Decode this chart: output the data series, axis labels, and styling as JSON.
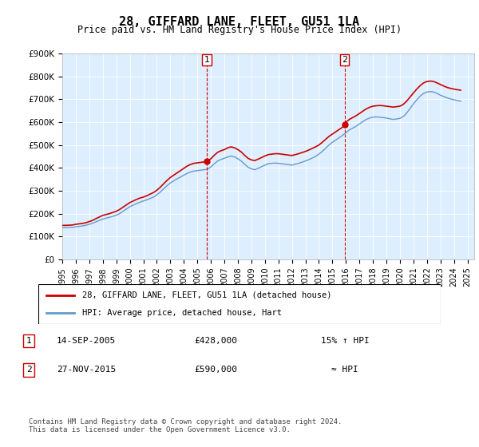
{
  "title": "28, GIFFARD LANE, FLEET, GU51 1LA",
  "subtitle": "Price paid vs. HM Land Registry's House Price Index (HPI)",
  "legend_line1": "28, GIFFARD LANE, FLEET, GU51 1LA (detached house)",
  "legend_line2": "HPI: Average price, detached house, Hart",
  "marker1_label": "1",
  "marker1_date": "14-SEP-2005",
  "marker1_price": "£428,000",
  "marker1_hpi": "15% ↑ HPI",
  "marker1_year": 2005.7,
  "marker1_value": 428000,
  "marker2_label": "2",
  "marker2_date": "27-NOV-2015",
  "marker2_price": "£590,000",
  "marker2_hpi": "≈ HPI",
  "marker2_year": 2015.9,
  "marker2_value": 590000,
  "line_color_red": "#cc0000",
  "line_color_blue": "#6699cc",
  "marker_box_color": "#cc0000",
  "vline_color": "#cc0000",
  "background_color": "#ddeeff",
  "plot_bg": "#ddeeff",
  "ylim": [
    0,
    900000
  ],
  "xlim_start": 1995,
  "xlim_end": 2025.5,
  "footer": "Contains HM Land Registry data © Crown copyright and database right 2024.\nThis data is licensed under the Open Government Licence v3.0.",
  "red_data_x": [
    1995.0,
    1995.25,
    1995.5,
    1995.75,
    1996.0,
    1996.25,
    1996.5,
    1996.75,
    1997.0,
    1997.25,
    1997.5,
    1997.75,
    1998.0,
    1998.25,
    1998.5,
    1998.75,
    1999.0,
    1999.25,
    1999.5,
    1999.75,
    2000.0,
    2000.25,
    2000.5,
    2000.75,
    2001.0,
    2001.25,
    2001.5,
    2001.75,
    2002.0,
    2002.25,
    2002.5,
    2002.75,
    2003.0,
    2003.25,
    2003.5,
    2003.75,
    2004.0,
    2004.25,
    2004.5,
    2004.75,
    2005.0,
    2005.25,
    2005.5,
    2005.7,
    2005.75,
    2006.0,
    2006.25,
    2006.5,
    2006.75,
    2007.0,
    2007.25,
    2007.5,
    2007.75,
    2008.0,
    2008.25,
    2008.5,
    2008.75,
    2009.0,
    2009.25,
    2009.5,
    2009.75,
    2010.0,
    2010.25,
    2010.5,
    2010.75,
    2011.0,
    2011.25,
    2011.5,
    2011.75,
    2012.0,
    2012.25,
    2012.5,
    2012.75,
    2013.0,
    2013.25,
    2013.5,
    2013.75,
    2014.0,
    2014.25,
    2014.5,
    2014.75,
    2015.0,
    2015.25,
    2015.5,
    2015.75,
    2015.9,
    2016.0,
    2016.25,
    2016.5,
    2016.75,
    2017.0,
    2017.25,
    2017.5,
    2017.75,
    2018.0,
    2018.25,
    2018.5,
    2018.75,
    2019.0,
    2019.25,
    2019.5,
    2019.75,
    2020.0,
    2020.25,
    2020.5,
    2020.75,
    2021.0,
    2021.25,
    2021.5,
    2021.75,
    2022.0,
    2022.25,
    2022.5,
    2022.75,
    2023.0,
    2023.25,
    2023.5,
    2023.75,
    2024.0,
    2024.25,
    2024.5
  ],
  "red_data_y": [
    148000,
    148500,
    149000,
    150000,
    153000,
    155000,
    157000,
    160000,
    165000,
    170000,
    178000,
    185000,
    192000,
    196000,
    200000,
    205000,
    210000,
    218000,
    228000,
    238000,
    248000,
    255000,
    262000,
    268000,
    272000,
    278000,
    285000,
    292000,
    302000,
    315000,
    330000,
    345000,
    358000,
    368000,
    378000,
    388000,
    398000,
    408000,
    415000,
    420000,
    422000,
    424000,
    426000,
    428000,
    429000,
    440000,
    455000,
    468000,
    475000,
    480000,
    488000,
    492000,
    488000,
    480000,
    470000,
    455000,
    442000,
    435000,
    432000,
    438000,
    445000,
    452000,
    458000,
    460000,
    462000,
    462000,
    460000,
    458000,
    456000,
    454000,
    458000,
    462000,
    467000,
    472000,
    478000,
    485000,
    492000,
    500000,
    512000,
    525000,
    538000,
    548000,
    558000,
    568000,
    578000,
    590000,
    600000,
    612000,
    620000,
    628000,
    638000,
    648000,
    658000,
    665000,
    670000,
    672000,
    673000,
    672000,
    670000,
    668000,
    666000,
    668000,
    670000,
    678000,
    692000,
    710000,
    728000,
    745000,
    760000,
    772000,
    778000,
    780000,
    778000,
    772000,
    765000,
    758000,
    752000,
    748000,
    745000,
    742000,
    740000
  ],
  "blue_data_x": [
    1995.0,
    1995.25,
    1995.5,
    1995.75,
    1996.0,
    1996.25,
    1996.5,
    1996.75,
    1997.0,
    1997.25,
    1997.5,
    1997.75,
    1998.0,
    1998.25,
    1998.5,
    1998.75,
    1999.0,
    1999.25,
    1999.5,
    1999.75,
    2000.0,
    2000.25,
    2000.5,
    2000.75,
    2001.0,
    2001.25,
    2001.5,
    2001.75,
    2002.0,
    2002.25,
    2002.5,
    2002.75,
    2003.0,
    2003.25,
    2003.5,
    2003.75,
    2004.0,
    2004.25,
    2004.5,
    2004.75,
    2005.0,
    2005.25,
    2005.5,
    2005.75,
    2006.0,
    2006.25,
    2006.5,
    2006.75,
    2007.0,
    2007.25,
    2007.5,
    2007.75,
    2008.0,
    2008.25,
    2008.5,
    2008.75,
    2009.0,
    2009.25,
    2009.5,
    2009.75,
    2010.0,
    2010.25,
    2010.5,
    2010.75,
    2011.0,
    2011.25,
    2011.5,
    2011.75,
    2012.0,
    2012.25,
    2012.5,
    2012.75,
    2013.0,
    2013.25,
    2013.5,
    2013.75,
    2014.0,
    2014.25,
    2014.5,
    2014.75,
    2015.0,
    2015.25,
    2015.5,
    2015.75,
    2016.0,
    2016.25,
    2016.5,
    2016.75,
    2017.0,
    2017.25,
    2017.5,
    2017.75,
    2018.0,
    2018.25,
    2018.5,
    2018.75,
    2019.0,
    2019.25,
    2019.5,
    2019.75,
    2020.0,
    2020.25,
    2020.5,
    2020.75,
    2021.0,
    2021.25,
    2021.5,
    2021.75,
    2022.0,
    2022.25,
    2022.5,
    2022.75,
    2023.0,
    2023.25,
    2023.5,
    2023.75,
    2024.0,
    2024.25,
    2024.5
  ],
  "blue_data_y": [
    138000,
    138500,
    139000,
    140000,
    142000,
    144000,
    146000,
    149000,
    153000,
    158000,
    164000,
    170000,
    176000,
    180000,
    184000,
    188000,
    193000,
    200000,
    210000,
    220000,
    230000,
    237000,
    244000,
    250000,
    255000,
    260000,
    266000,
    272000,
    282000,
    294000,
    308000,
    322000,
    334000,
    343000,
    352000,
    360000,
    368000,
    376000,
    382000,
    386000,
    388000,
    390000,
    392000,
    394000,
    404000,
    418000,
    430000,
    437000,
    442000,
    448000,
    452000,
    448000,
    440000,
    430000,
    416000,
    403000,
    396000,
    392000,
    398000,
    405000,
    412000,
    418000,
    420000,
    421000,
    420000,
    418000,
    416000,
    414000,
    412000,
    416000,
    420000,
    425000,
    430000,
    436000,
    443000,
    450000,
    460000,
    472000,
    486000,
    500000,
    512000,
    522000,
    532000,
    542000,
    554000,
    566000,
    574000,
    582000,
    592000,
    602000,
    612000,
    618000,
    622000,
    623000,
    622000,
    620000,
    618000,
    615000,
    612000,
    614000,
    617000,
    625000,
    640000,
    660000,
    680000,
    698000,
    714000,
    726000,
    732000,
    734000,
    732000,
    726000,
    718000,
    712000,
    706000,
    702000,
    698000,
    695000,
    692000
  ]
}
